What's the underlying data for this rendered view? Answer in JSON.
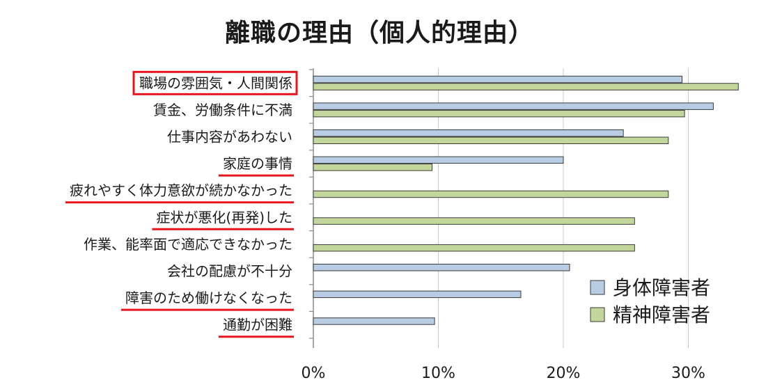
{
  "chart_data": {
    "type": "bar",
    "orientation": "horizontal",
    "title": "離職の理由（個人的理由）",
    "categories": [
      "職場の雰囲気・人間関係",
      "賃金、労働条件に不満",
      "仕事内容があわない",
      "家庭の事情",
      "疲れやすく体力意欲が続かなかった",
      "症状が悪化(再発)した",
      "作業、能率面で適応できなかった",
      "会社の配慮が不十分",
      "障害のため働けなくなった",
      "通勤が困難"
    ],
    "series": [
      {
        "name": "身体障害者",
        "color": "#b8cce4",
        "values": [
          29.5,
          32.0,
          24.8,
          20.0,
          null,
          null,
          null,
          20.5,
          16.6,
          9.7
        ]
      },
      {
        "name": "精神障害者",
        "color": "#c3d69b",
        "values": [
          34.0,
          29.7,
          28.4,
          9.5,
          28.4,
          25.7,
          25.7,
          null,
          null,
          null
        ]
      }
    ],
    "x_ticks": [
      "0%",
      "10%",
      "20%",
      "30%"
    ],
    "xlim": [
      0,
      34
    ],
    "highlighted_categories": [
      0
    ],
    "underlined_categories": [
      3,
      4,
      5,
      8,
      9
    ],
    "highlight_color": "#e8141c",
    "grid": true,
    "legend_position": "bottom-right"
  }
}
